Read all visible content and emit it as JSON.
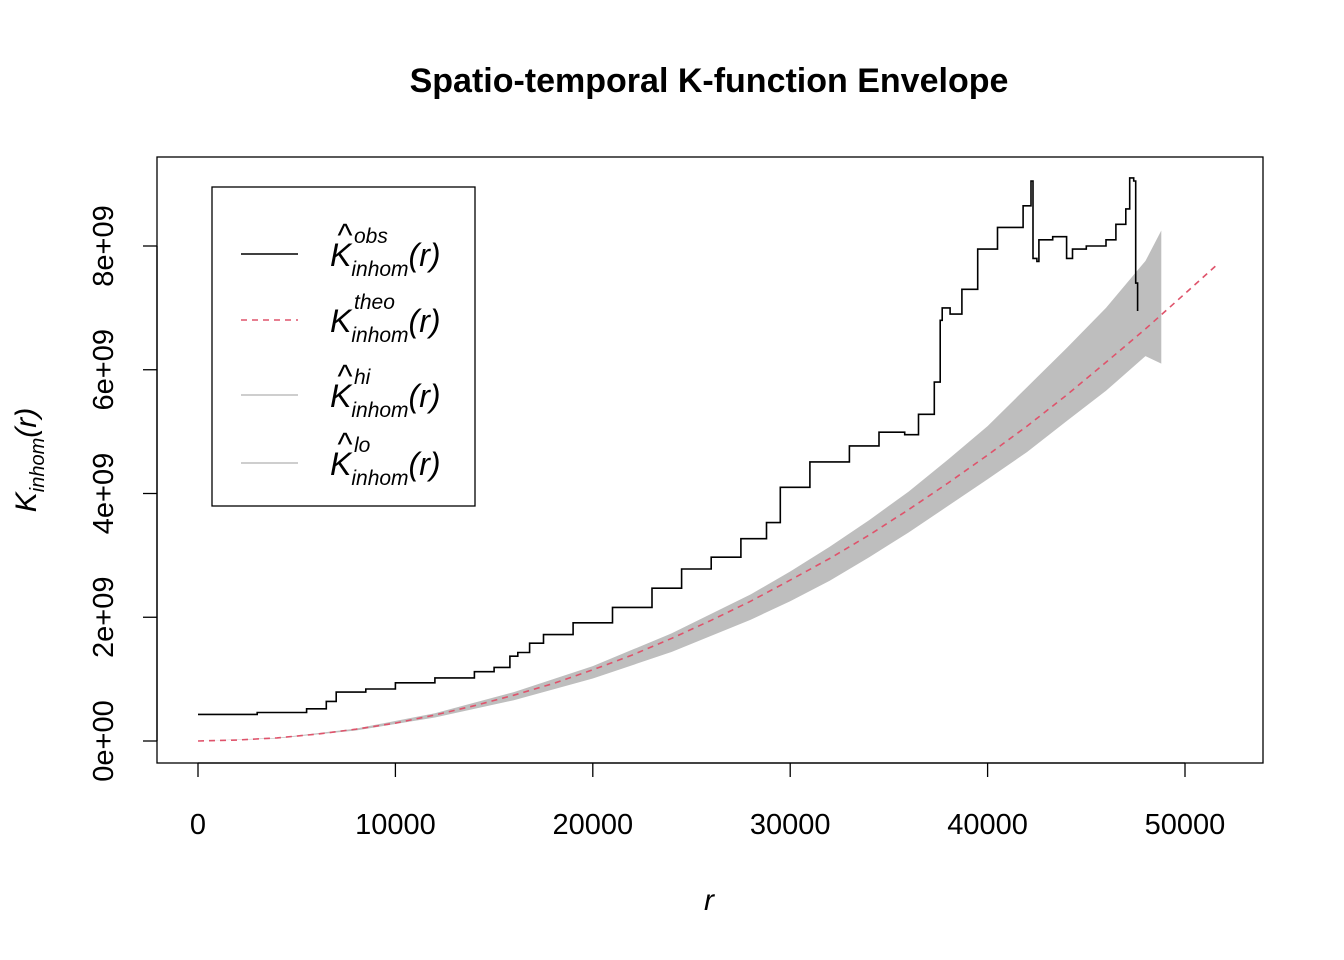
{
  "chart_data": {
    "type": "line",
    "title": "Spatio-temporal K-function Envelope",
    "xlabel": "r",
    "ylabel": {
      "main": "K",
      "sub": "inhom",
      "arg": "(r)"
    },
    "xlim": [
      0,
      52000
    ],
    "ylim": [
      -350000000,
      9300000000
    ],
    "x_ticks": [
      0,
      10000,
      20000,
      30000,
      40000,
      50000
    ],
    "x_tick_labels": [
      "0",
      "10000",
      "20000",
      "30000",
      "40000",
      "50000"
    ],
    "y_ticks": [
      0,
      2000000000,
      4000000000,
      6000000000,
      8000000000
    ],
    "y_tick_labels": [
      "0e+00",
      "2e+09",
      "4e+09",
      "6e+09",
      "8e+09"
    ],
    "grid": false,
    "legend_position": "top-left",
    "legend": [
      {
        "key": "obs",
        "main": "K",
        "hat": true,
        "sup": "obs",
        "sub": "inhom",
        "arg": "(r)",
        "color": "#000000",
        "dash": "solid"
      },
      {
        "key": "theo",
        "main": "K",
        "hat": false,
        "sup": "theo",
        "sub": "inhom",
        "arg": "(r)",
        "color": "#DF536B",
        "dash": "dashed"
      },
      {
        "key": "hi",
        "main": "K",
        "hat": true,
        "sup": "hi",
        "sub": "inhom",
        "arg": "(r)",
        "color": "#BEBEBE",
        "dash": "solid"
      },
      {
        "key": "lo",
        "main": "K",
        "hat": true,
        "sup": "lo",
        "sub": "inhom",
        "arg": "(r)",
        "color": "#BEBEBE",
        "dash": "solid"
      }
    ],
    "series": [
      {
        "key": "theo",
        "color": "#DF536B",
        "x": [
          0,
          2000,
          4000,
          6000,
          8000,
          10000,
          12000,
          14000,
          16000,
          18000,
          20000,
          22000,
          24000,
          26000,
          28000,
          30000,
          32000,
          34000,
          36000,
          38000,
          40000,
          42000,
          44000,
          46000,
          48000,
          50000,
          51700
        ],
        "y": [
          0,
          16000000,
          50000000,
          110000000,
          190000000,
          290000000,
          420000000,
          570000000,
          740000000,
          930000000,
          1150000000,
          1390000000,
          1660000000,
          1950000000,
          2260000000,
          2600000000,
          2950000000,
          3330000000,
          3740000000,
          4170000000,
          4620000000,
          5090000000,
          5590000000,
          6120000000,
          6660000000,
          7230000000,
          7720000000
        ]
      },
      {
        "key": "hi",
        "color": "#BEBEBE",
        "x": [
          0,
          4000,
          8000,
          12000,
          16000,
          20000,
          24000,
          28000,
          30000,
          32000,
          34000,
          36000,
          38000,
          40000,
          42000,
          44000,
          46000,
          48000,
          48800
        ],
        "y": [
          0,
          50000000,
          200000000,
          450000000,
          790000000,
          1210000000,
          1740000000,
          2370000000,
          2740000000,
          3140000000,
          3570000000,
          4030000000,
          4550000000,
          5090000000,
          5720000000,
          6350000000,
          7000000000,
          7760000000,
          8250000000
        ]
      },
      {
        "key": "lo",
        "color": "#BEBEBE",
        "x": [
          0,
          4000,
          8000,
          12000,
          16000,
          20000,
          24000,
          28000,
          30000,
          32000,
          34000,
          36000,
          38000,
          40000,
          42000,
          44000,
          46000,
          48000,
          48800
        ],
        "y": [
          0,
          40000000,
          170000000,
          380000000,
          660000000,
          1010000000,
          1440000000,
          1960000000,
          2260000000,
          2590000000,
          2970000000,
          3370000000,
          3800000000,
          4230000000,
          4670000000,
          5170000000,
          5660000000,
          6220000000,
          6100000000
        ]
      },
      {
        "key": "obs",
        "color": "#000000",
        "x": [
          0,
          3000,
          5500,
          6500,
          7000,
          8500,
          10000,
          12000,
          14000,
          15000,
          15600,
          15800,
          16200,
          16800,
          17500,
          19000,
          21000,
          23000,
          24500,
          26000,
          27500,
          28800,
          29500,
          31000,
          33000,
          34500,
          35800,
          36500,
          37300,
          37600,
          37700,
          38100,
          38700,
          39500,
          40500,
          41800,
          42200,
          42300,
          42500,
          42600,
          43300,
          44000,
          44300,
          45000,
          46000,
          46500,
          47000,
          47200,
          47400,
          47500,
          47600
        ],
        "y": [
          430000000,
          460000000,
          520000000,
          640000000,
          790000000,
          840000000,
          940000000,
          1020000000,
          1120000000,
          1190000000,
          1190000000,
          1370000000,
          1430000000,
          1580000000,
          1720000000,
          1910000000,
          2160000000,
          2470000000,
          2780000000,
          2970000000,
          3270000000,
          3530000000,
          4100000000,
          4510000000,
          4770000000,
          4990000000,
          4950000000,
          5280000000,
          5800000000,
          6800000000,
          7000000000,
          6900000000,
          7300000000,
          7950000000,
          8300000000,
          8650000000,
          9050000000,
          7800000000,
          7750000000,
          8100000000,
          8150000000,
          7800000000,
          7950000000,
          8000000000,
          8100000000,
          8350000000,
          8600000000,
          9100000000,
          9050000000,
          7400000000,
          6950000000
        ]
      }
    ]
  }
}
